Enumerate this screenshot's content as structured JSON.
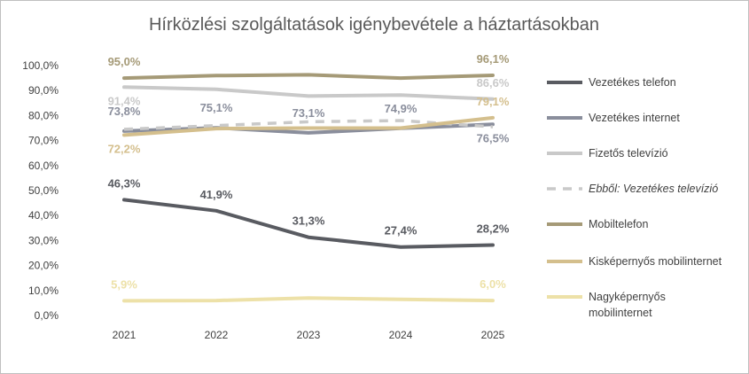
{
  "chart_data": {
    "type": "line",
    "title": "Hírközlési  szolgáltatások  igénybevétele  a  háztartásokban",
    "categories": [
      "2021",
      "2022",
      "2023",
      "2024",
      "2025"
    ],
    "y_ticks": [
      "0,0%",
      "10,0%",
      "20,0%",
      "30,0%",
      "40,0%",
      "50,0%",
      "60,0%",
      "70,0%",
      "80,0%",
      "90,0%",
      "100,0%"
    ],
    "ylim": [
      0,
      100
    ],
    "grid": false,
    "legend_position": "right",
    "series": [
      {
        "name": "Vezetékes telefon",
        "values": [
          46.3,
          41.9,
          31.3,
          27.4,
          28.2
        ],
        "labels": [
          "46,3%",
          "41,9%",
          "31,3%",
          "27,4%",
          "28,2%"
        ],
        "color": "#595b61",
        "dashed": false,
        "italic": false
      },
      {
        "name": "Vezetékes internet",
        "values": [
          73.8,
          75.1,
          73.1,
          74.9,
          76.5
        ],
        "labels": [
          "73,8%",
          "75,1%",
          "73,1%",
          "74,9%",
          "76,5%"
        ],
        "color": "#8a8e9c",
        "dashed": false,
        "italic": false
      },
      {
        "name": "Fizetős televízió",
        "values": [
          91.4,
          90.5,
          87.8,
          88.2,
          86.6
        ],
        "labels": [
          "91,4%",
          "",
          "",
          "",
          "86,6%"
        ],
        "color": "#c9c9c9",
        "dashed": false,
        "italic": false
      },
      {
        "name": "Ebből: Vezetékes televízió",
        "values": [
          74.5,
          76.0,
          77.5,
          78.0,
          75.5
        ],
        "labels": [
          "",
          "",
          "",
          "",
          ""
        ],
        "color": "#c9c9c9",
        "dashed": true,
        "italic": true
      },
      {
        "name": "Mobiltelefon",
        "values": [
          95.0,
          96.0,
          96.3,
          95.0,
          96.1
        ],
        "labels": [
          "95,0%",
          "",
          "",
          "",
          "96,1%"
        ],
        "color": "#a59a77",
        "dashed": false,
        "italic": false
      },
      {
        "name": "Kisképernyős mobilinternet",
        "values": [
          72.2,
          74.8,
          75.0,
          75.0,
          79.1
        ],
        "labels": [
          "72,2%",
          "",
          "",
          "",
          "79,1%"
        ],
        "color": "#d4bf8d",
        "dashed": false,
        "italic": false
      },
      {
        "name": "Nagyképernyős mobilinternet",
        "values": [
          5.9,
          6.0,
          7.0,
          6.5,
          6.0
        ],
        "labels": [
          "5,9%",
          "",
          "",
          "",
          "6,0%"
        ],
        "color": "#ede1a8",
        "dashed": false,
        "italic": false
      }
    ]
  }
}
